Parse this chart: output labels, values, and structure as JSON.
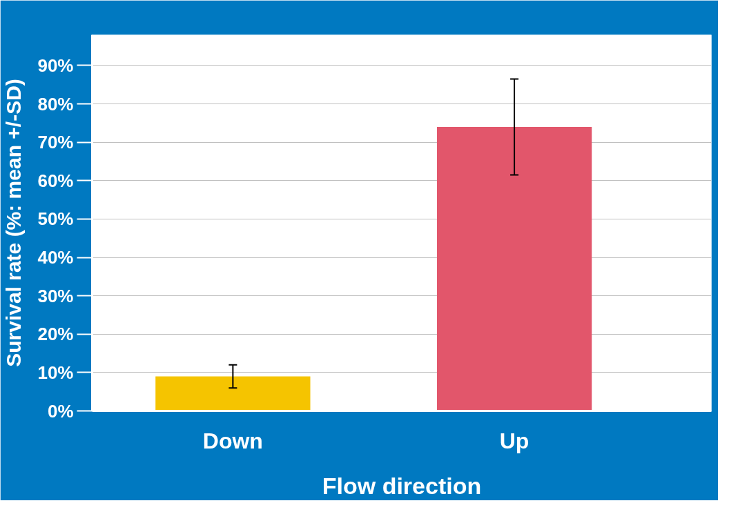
{
  "chart_data": {
    "type": "bar",
    "xlabel": "Flow direction",
    "ylabel": "Survival rate (%: mean +/-SD)",
    "categories": [
      "Down",
      "Up"
    ],
    "values": [
      9,
      74
    ],
    "colors": [
      "#f5c400",
      "#e2566b"
    ],
    "errors": [
      3,
      12.5
    ],
    "ylim": [
      0,
      98
    ],
    "yticks": [
      {
        "value": 0,
        "label": "0%"
      },
      {
        "value": 10,
        "label": "10%"
      },
      {
        "value": 20,
        "label": "20%"
      },
      {
        "value": 30,
        "label": "30%"
      },
      {
        "value": 40,
        "label": "40%"
      },
      {
        "value": 50,
        "label": "50%"
      },
      {
        "value": 60,
        "label": "60%"
      },
      {
        "value": 70,
        "label": "70%"
      },
      {
        "value": 80,
        "label": "80%"
      },
      {
        "value": 90,
        "label": "90%"
      }
    ],
    "grid": "y"
  }
}
